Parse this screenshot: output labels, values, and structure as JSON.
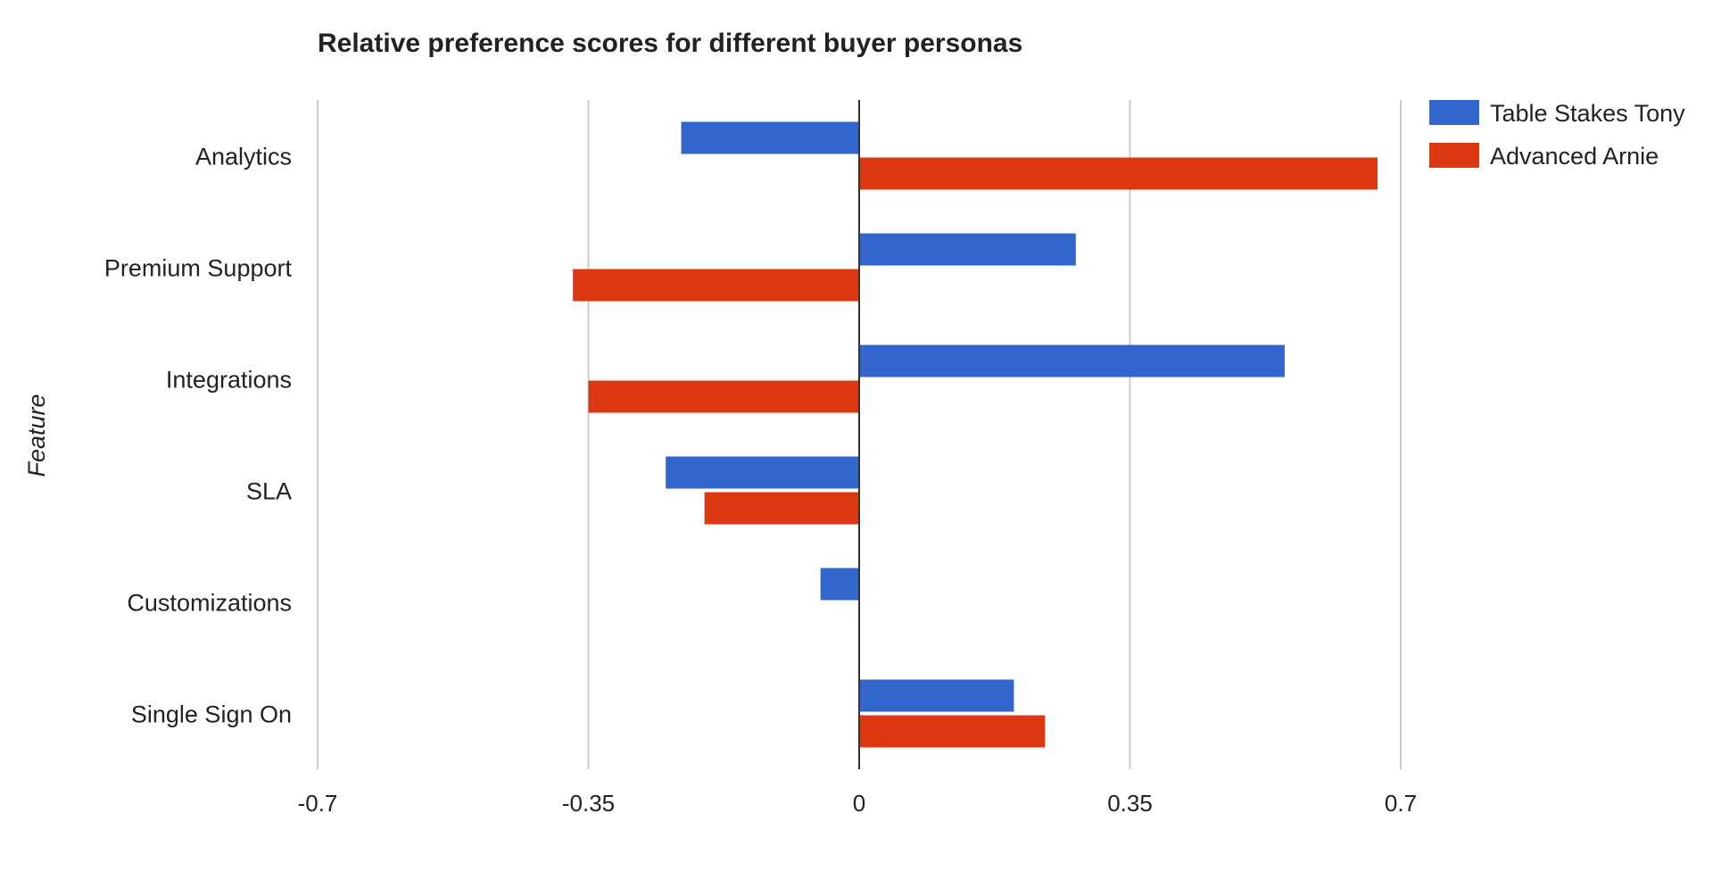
{
  "chart_data": {
    "type": "bar",
    "orientation": "horizontal",
    "title": "Relative preference scores for different buyer personas",
    "ylabel": "Feature",
    "xlabel": "",
    "categories": [
      "Analytics",
      "Premium Support",
      "Integrations",
      "SLA",
      "Customizations",
      "Single Sign On"
    ],
    "series": [
      {
        "name": "Table Stakes Tony",
        "color": "#3366cc",
        "values": [
          -0.23,
          0.28,
          0.55,
          -0.25,
          -0.05,
          0.2
        ]
      },
      {
        "name": "Advanced Arnie",
        "color": "#dc3912",
        "values": [
          0.67,
          -0.37,
          -0.35,
          -0.2,
          0,
          0.24
        ]
      }
    ],
    "xlim": [
      -0.7,
      0.7
    ],
    "xticks": [
      -0.7,
      -0.35,
      0,
      0.35,
      0.7
    ],
    "xtick_labels": [
      "-0.7",
      "-0.35",
      "0",
      "0.35",
      "0.7"
    ],
    "grid": true,
    "legend_position": "top-right"
  }
}
